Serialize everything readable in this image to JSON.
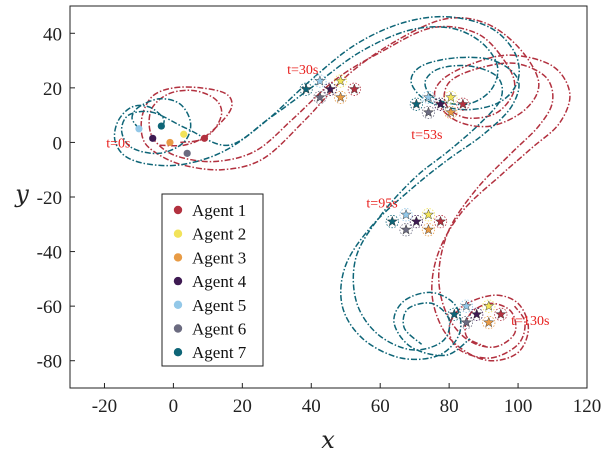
{
  "chart_data": {
    "type": "line",
    "title": "",
    "xlabel": "x",
    "ylabel": "y",
    "xlim": [
      -30,
      120
    ],
    "ylim": [
      -90,
      50
    ],
    "xticks": [
      -20,
      0,
      20,
      40,
      60,
      80,
      100,
      120
    ],
    "yticks": [
      40,
      20,
      0,
      -20,
      -40,
      -60,
      -80
    ],
    "grid": false,
    "legend_position": "left",
    "colors": {
      "red": "#b2313f",
      "teal": "#0e6577"
    },
    "series": [
      {
        "name": "Agent 1",
        "color": "#b2313f"
      },
      {
        "name": "Agent 2",
        "color": "#f2e35a"
      },
      {
        "name": "Agent 3",
        "color": "#e89b45"
      },
      {
        "name": "Agent 4",
        "color": "#3e1a52"
      },
      {
        "name": "Agent 5",
        "color": "#93c8e8"
      },
      {
        "name": "Agent 6",
        "color": "#6b6b80"
      },
      {
        "name": "Agent 7",
        "color": "#0e6577"
      }
    ],
    "paths": {
      "red_outer": [
        [
          -4,
          -1
        ],
        [
          3,
          -1
        ],
        [
          9,
          2
        ],
        [
          15,
          9
        ],
        [
          17,
          14
        ],
        [
          15,
          18
        ],
        [
          8,
          20
        ],
        [
          0,
          20
        ],
        [
          -6,
          17
        ],
        [
          -9,
          10
        ],
        [
          -9,
          2
        ],
        [
          -6,
          -3
        ],
        [
          2,
          -8
        ],
        [
          14,
          -10
        ],
        [
          26,
          -6
        ],
        [
          38,
          8
        ],
        [
          50,
          24
        ],
        [
          63,
          36
        ],
        [
          78,
          45
        ],
        [
          90,
          44
        ],
        [
          100,
          35
        ],
        [
          106,
          22
        ],
        [
          102,
          12
        ],
        [
          92,
          6
        ],
        [
          82,
          8
        ],
        [
          76,
          16
        ],
        [
          78,
          23
        ],
        [
          87,
          29
        ],
        [
          98,
          32
        ],
        [
          110,
          28
        ],
        [
          115,
          18
        ],
        [
          112,
          7
        ],
        [
          104,
          -2
        ],
        [
          95,
          -12
        ],
        [
          84,
          -25
        ],
        [
          77,
          -40
        ],
        [
          75,
          -55
        ],
        [
          78,
          -68
        ],
        [
          84,
          -76
        ],
        [
          92,
          -80
        ],
        [
          100,
          -77
        ],
        [
          103,
          -68
        ],
        [
          100,
          -59
        ],
        [
          93,
          -56
        ],
        [
          84,
          -60
        ],
        [
          80,
          -68
        ],
        [
          83,
          -76
        ],
        [
          92,
          -79
        ],
        [
          100,
          -74
        ],
        [
          102,
          -66
        ],
        [
          99,
          -60
        ]
      ],
      "red_inner": [
        [
          2,
          0
        ],
        [
          8,
          1
        ],
        [
          12,
          5
        ],
        [
          14,
          11
        ],
        [
          12,
          16
        ],
        [
          6,
          19
        ],
        [
          -1,
          18
        ],
        [
          -6,
          13
        ],
        [
          -7,
          6
        ],
        [
          -5,
          0
        ],
        [
          1,
          -5
        ],
        [
          12,
          -7
        ],
        [
          24,
          -3
        ],
        [
          35,
          9
        ],
        [
          47,
          23
        ],
        [
          60,
          33
        ],
        [
          75,
          42
        ],
        [
          88,
          40
        ],
        [
          96,
          30
        ],
        [
          99,
          20
        ],
        [
          94,
          11
        ],
        [
          85,
          9
        ],
        [
          79,
          14
        ],
        [
          80,
          22
        ],
        [
          88,
          27
        ],
        [
          99,
          29
        ],
        [
          108,
          24
        ],
        [
          110,
          15
        ],
        [
          106,
          6
        ],
        [
          98,
          -4
        ],
        [
          88,
          -17
        ],
        [
          80,
          -32
        ],
        [
          77,
          -48
        ],
        [
          79,
          -62
        ],
        [
          85,
          -72
        ],
        [
          93,
          -75
        ],
        [
          99,
          -70
        ],
        [
          98,
          -62
        ],
        [
          92,
          -59
        ],
        [
          86,
          -63
        ],
        [
          85,
          -71
        ],
        [
          91,
          -75
        ]
      ],
      "teal_outer": [
        [
          -3,
          6
        ],
        [
          -3,
          9
        ],
        [
          -7,
          13
        ],
        [
          -12,
          13
        ],
        [
          -16,
          8
        ],
        [
          -17,
          1
        ],
        [
          -14,
          -5
        ],
        [
          -7,
          -8
        ],
        [
          3,
          -8
        ],
        [
          15,
          -3
        ],
        [
          27,
          8
        ],
        [
          40,
          23
        ],
        [
          53,
          36
        ],
        [
          67,
          44
        ],
        [
          80,
          46
        ],
        [
          92,
          42
        ],
        [
          99,
          33
        ],
        [
          100,
          23
        ],
        [
          95,
          15
        ],
        [
          85,
          12
        ],
        [
          74,
          15
        ],
        [
          69,
          22
        ],
        [
          72,
          28
        ],
        [
          82,
          31
        ],
        [
          93,
          30
        ],
        [
          100,
          23
        ],
        [
          98,
          13
        ],
        [
          90,
          3
        ],
        [
          80,
          -6
        ],
        [
          70,
          -16
        ],
        [
          58,
          -30
        ],
        [
          50,
          -45
        ],
        [
          49,
          -60
        ],
        [
          55,
          -72
        ],
        [
          66,
          -79
        ],
        [
          77,
          -78
        ],
        [
          83,
          -70
        ],
        [
          82,
          -60
        ],
        [
          75,
          -55
        ],
        [
          67,
          -58
        ],
        [
          64,
          -66
        ],
        [
          69,
          -75
        ],
        [
          79,
          -78
        ],
        [
          86,
          -72
        ]
      ],
      "teal_inner": [
        [
          -10,
          5
        ],
        [
          -12,
          9
        ],
        [
          -10,
          13
        ],
        [
          -4,
          16
        ],
        [
          2,
          14
        ],
        [
          5,
          7
        ],
        [
          3,
          0
        ],
        [
          -4,
          -4
        ],
        [
          -12,
          -2
        ],
        [
          -15,
          4
        ],
        [
          -13,
          10
        ],
        [
          -6,
          11
        ],
        [
          4,
          5
        ],
        [
          16,
          -1
        ],
        [
          28,
          9
        ],
        [
          41,
          21
        ],
        [
          54,
          33
        ],
        [
          68,
          41
        ],
        [
          80,
          42
        ],
        [
          89,
          37
        ],
        [
          94,
          28
        ],
        [
          92,
          19
        ],
        [
          85,
          14
        ],
        [
          76,
          16
        ],
        [
          73,
          22
        ],
        [
          77,
          27
        ],
        [
          86,
          28
        ],
        [
          94,
          24
        ],
        [
          95,
          16
        ],
        [
          89,
          7
        ],
        [
          80,
          -3
        ],
        [
          70,
          -13
        ],
        [
          60,
          -27
        ],
        [
          53,
          -42
        ],
        [
          53,
          -58
        ],
        [
          59,
          -70
        ],
        [
          69,
          -76
        ],
        [
          78,
          -73
        ],
        [
          80,
          -65
        ],
        [
          75,
          -59
        ],
        [
          68,
          -61
        ],
        [
          67,
          -68
        ],
        [
          72,
          -74
        ]
      ]
    },
    "markers_start": [
      {
        "x": 9,
        "y": 1.5,
        "color": "#b2313f"
      },
      {
        "x": 3,
        "y": 3,
        "color": "#f2e35a"
      },
      {
        "x": -1,
        "y": 0,
        "color": "#e89b45"
      },
      {
        "x": -6,
        "y": 1.5,
        "color": "#3e1a52"
      },
      {
        "x": -10,
        "y": 5,
        "color": "#93c8e8"
      },
      {
        "x": 4,
        "y": -4,
        "color": "#6b6b80"
      },
      {
        "x": -3.5,
        "y": 6,
        "color": "#0e6577"
      }
    ],
    "markers_star": [
      {
        "t": "t=30s",
        "pts": [
          [
            52.5,
            19.5,
            "#b2313f"
          ],
          [
            48.5,
            22.5,
            "#f2e35a"
          ],
          [
            48.5,
            16.5,
            "#e89b45"
          ],
          [
            45.5,
            19.5,
            "#3e1a52"
          ],
          [
            42.5,
            22.5,
            "#93c8e8"
          ],
          [
            42.5,
            16.5,
            "#6b6b80"
          ],
          [
            38.5,
            19.5,
            "#0e6577"
          ]
        ]
      },
      {
        "t": "t=53s",
        "pts": [
          [
            84,
            14,
            "#b2313f"
          ],
          [
            80.5,
            16.5,
            "#f2e35a"
          ],
          [
            80.5,
            11,
            "#e89b45"
          ],
          [
            77.5,
            14,
            "#3e1a52"
          ],
          [
            74,
            16.5,
            "#93c8e8"
          ],
          [
            74,
            11,
            "#6b6b80"
          ],
          [
            70.5,
            14,
            "#0e6577"
          ]
        ]
      },
      {
        "t": "t=95s",
        "pts": [
          [
            77.5,
            -29,
            "#b2313f"
          ],
          [
            74,
            -26.5,
            "#f2e35a"
          ],
          [
            74,
            -32,
            "#e89b45"
          ],
          [
            70.5,
            -29,
            "#3e1a52"
          ],
          [
            67.5,
            -26.5,
            "#93c8e8"
          ],
          [
            67.5,
            -32,
            "#6b6b80"
          ],
          [
            63.5,
            -29,
            "#0e6577"
          ]
        ]
      },
      {
        "t": "t=130s",
        "pts": [
          [
            95,
            -63,
            "#b2313f"
          ],
          [
            91.5,
            -60,
            "#f2e35a"
          ],
          [
            91.5,
            -66,
            "#e89b45"
          ],
          [
            88,
            -63,
            "#3e1a52"
          ],
          [
            85,
            -60,
            "#93c8e8"
          ],
          [
            85,
            -66,
            "#6b6b80"
          ],
          [
            81.5,
            -63,
            "#0e6577"
          ]
        ]
      }
    ],
    "annotations": [
      {
        "text": "t=0s",
        "x": -19.5,
        "y": 0
      },
      {
        "text": "t=30s",
        "x": 33,
        "y": 27
      },
      {
        "text": "t=53s",
        "x": 69,
        "y": 3
      },
      {
        "text": "t=95s",
        "x": 56,
        "y": -22
      },
      {
        "text": "t=130s",
        "x": 98,
        "y": -65
      }
    ]
  }
}
